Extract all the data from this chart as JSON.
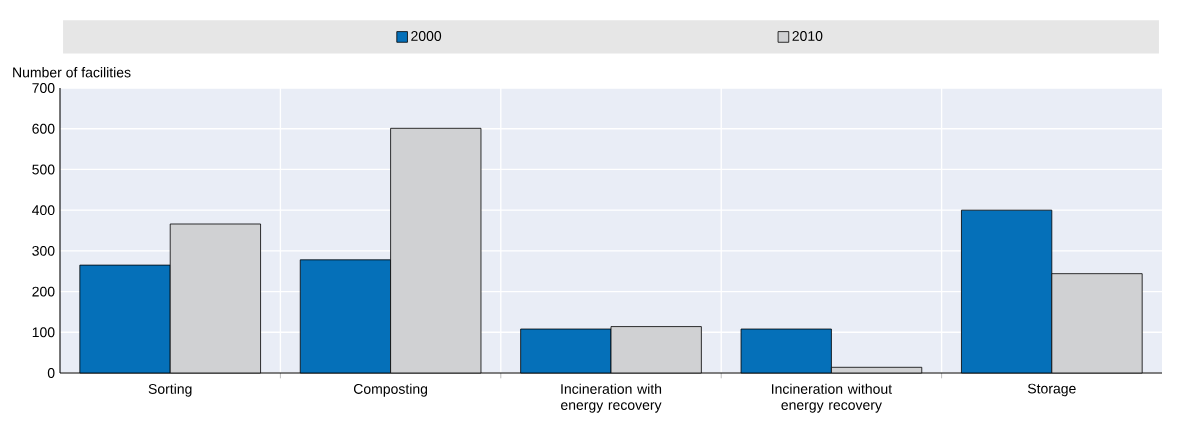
{
  "chart_data": {
    "type": "bar",
    "ylabel": "Number of facilities",
    "categories": [
      "Sorting",
      "Composting",
      "Incineration with energy recovery",
      "Incineration without energy recovery",
      "Storage"
    ],
    "series": [
      {
        "name": "2000",
        "color": "#0570b9",
        "values": [
          265,
          278,
          108,
          108,
          400
        ]
      },
      {
        "name": "2010",
        "color": "#d0d1d3",
        "values": [
          366,
          601,
          114,
          14,
          244
        ]
      }
    ],
    "ylim": [
      0,
      700
    ],
    "yticks": [
      0,
      100,
      200,
      300,
      400,
      500,
      600,
      700
    ],
    "grid": true,
    "legend": "top"
  }
}
